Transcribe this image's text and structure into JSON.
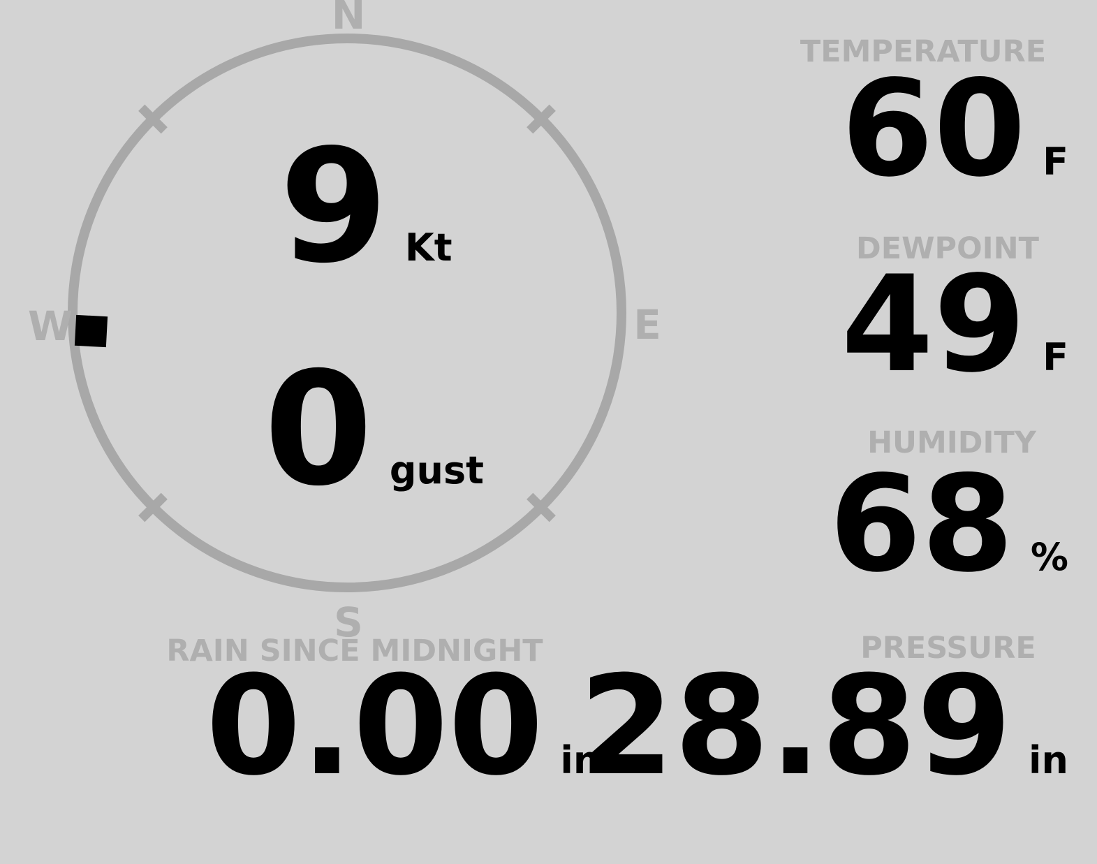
{
  "theme": {
    "background": "#d3d3d3",
    "value_color": "#000000",
    "label_color": "#afafaf",
    "ring_color": "#a8a8a8",
    "marker_color": "#000000"
  },
  "compass": {
    "cardinals": {
      "n": "N",
      "e": "E",
      "s": "S",
      "w": "W"
    },
    "wind_direction": "W",
    "wind_speed": {
      "value": "9",
      "unit": "Kt"
    },
    "wind_gust": {
      "value": "0",
      "unit": "gust"
    }
  },
  "readings": {
    "temperature": {
      "label": "TEMPERATURE",
      "value": "60",
      "unit": "F"
    },
    "dewpoint": {
      "label": "DEWPOINT",
      "value": "49",
      "unit": "F"
    },
    "humidity": {
      "label": "HUMIDITY",
      "value": "68",
      "unit": "%"
    },
    "rain": {
      "label": "RAIN SINCE MIDNIGHT",
      "value": "0.00",
      "unit": "in"
    },
    "pressure": {
      "label": "PRESSURE",
      "value": "28.89",
      "unit": "in"
    }
  }
}
